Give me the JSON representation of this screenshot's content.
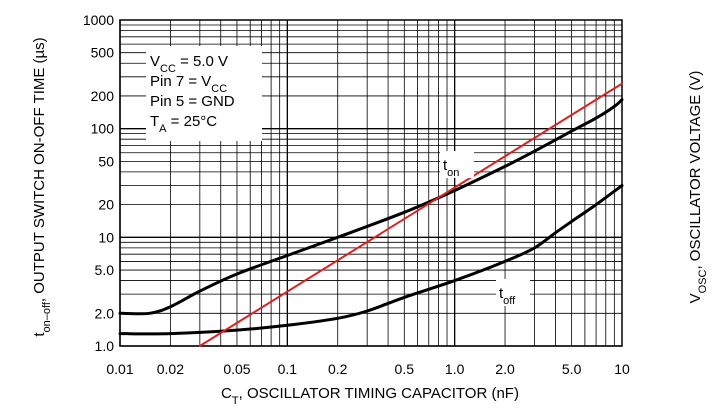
{
  "chart_data": {
    "type": "line",
    "x_scale": "log",
    "y_scale": "log",
    "xlim": [
      0.01,
      10
    ],
    "ylim": [
      1,
      1000
    ],
    "grid": true,
    "xlabel": {
      "main": "C",
      "sub": "T",
      "rest": ", OSCILLATOR TIMING CAPACITOR (nF)"
    },
    "ylabel": {
      "main": "t",
      "sub": "on–off",
      "rest": ", OUTPUT SWITCH ON-OFF TIME (µs)"
    },
    "y2label": {
      "main": "V",
      "sub": "OSC",
      "rest": ", OSCILLATOR VOLTAGE (V)"
    },
    "x_ticks": [
      {
        "value": 0.01,
        "label": "0.01"
      },
      {
        "value": 0.02,
        "label": "0.02"
      },
      {
        "value": 0.05,
        "label": "0.05"
      },
      {
        "value": 0.1,
        "label": "0.1"
      },
      {
        "value": 0.2,
        "label": "0.2"
      },
      {
        "value": 0.5,
        "label": "0.5"
      },
      {
        "value": 1,
        "label": "1.0"
      },
      {
        "value": 2,
        "label": "2.0"
      },
      {
        "value": 5,
        "label": "5.0"
      },
      {
        "value": 10,
        "label": "10"
      }
    ],
    "y_ticks": [
      {
        "value": 1,
        "label": "1.0"
      },
      {
        "value": 2,
        "label": "2.0"
      },
      {
        "value": 5,
        "label": "5.0"
      },
      {
        "value": 10,
        "label": "10"
      },
      {
        "value": 20,
        "label": "20"
      },
      {
        "value": 50,
        "label": "50"
      },
      {
        "value": 100,
        "label": "100"
      },
      {
        "value": 200,
        "label": "200"
      },
      {
        "value": 500,
        "label": "500"
      },
      {
        "value": 1000,
        "label": "1000"
      }
    ],
    "conditions": [
      {
        "main": "V",
        "sub": "CC",
        "rest": " = 5.0 V"
      },
      {
        "main": "Pin 7 = V",
        "sub": "CC",
        "rest": ""
      },
      {
        "main": "Pin 5 = GND",
        "sub": "",
        "rest": ""
      },
      {
        "main": "T",
        "sub": "A",
        "rest": " = 25°C"
      }
    ],
    "series": [
      {
        "name": {
          "main": "t",
          "sub": "on"
        },
        "color": "#000000",
        "points": [
          [
            0.01,
            2.0
          ],
          [
            0.015,
            2.0
          ],
          [
            0.02,
            2.3
          ],
          [
            0.03,
            3.2
          ],
          [
            0.05,
            4.6
          ],
          [
            0.1,
            6.8
          ],
          [
            0.2,
            10
          ],
          [
            0.5,
            17
          ],
          [
            1,
            27
          ],
          [
            2,
            45
          ],
          [
            3,
            62
          ],
          [
            5,
            95
          ],
          [
            7,
            125
          ],
          [
            9,
            160
          ],
          [
            10,
            185
          ]
        ]
      },
      {
        "name": {
          "main": "t",
          "sub": "off"
        },
        "color": "#000000",
        "points": [
          [
            0.01,
            1.3
          ],
          [
            0.02,
            1.3
          ],
          [
            0.05,
            1.4
          ],
          [
            0.1,
            1.55
          ],
          [
            0.2,
            1.8
          ],
          [
            0.3,
            2.1
          ],
          [
            0.5,
            2.8
          ],
          [
            1,
            4.0
          ],
          [
            2,
            6.0
          ],
          [
            3,
            8.0
          ],
          [
            4,
            11
          ],
          [
            5,
            14
          ],
          [
            7,
            20
          ],
          [
            10,
            30
          ]
        ]
      },
      {
        "name": null,
        "color": "#dd2020",
        "points": [
          [
            0.03,
            1.0
          ],
          [
            10,
            260
          ]
        ]
      }
    ]
  }
}
